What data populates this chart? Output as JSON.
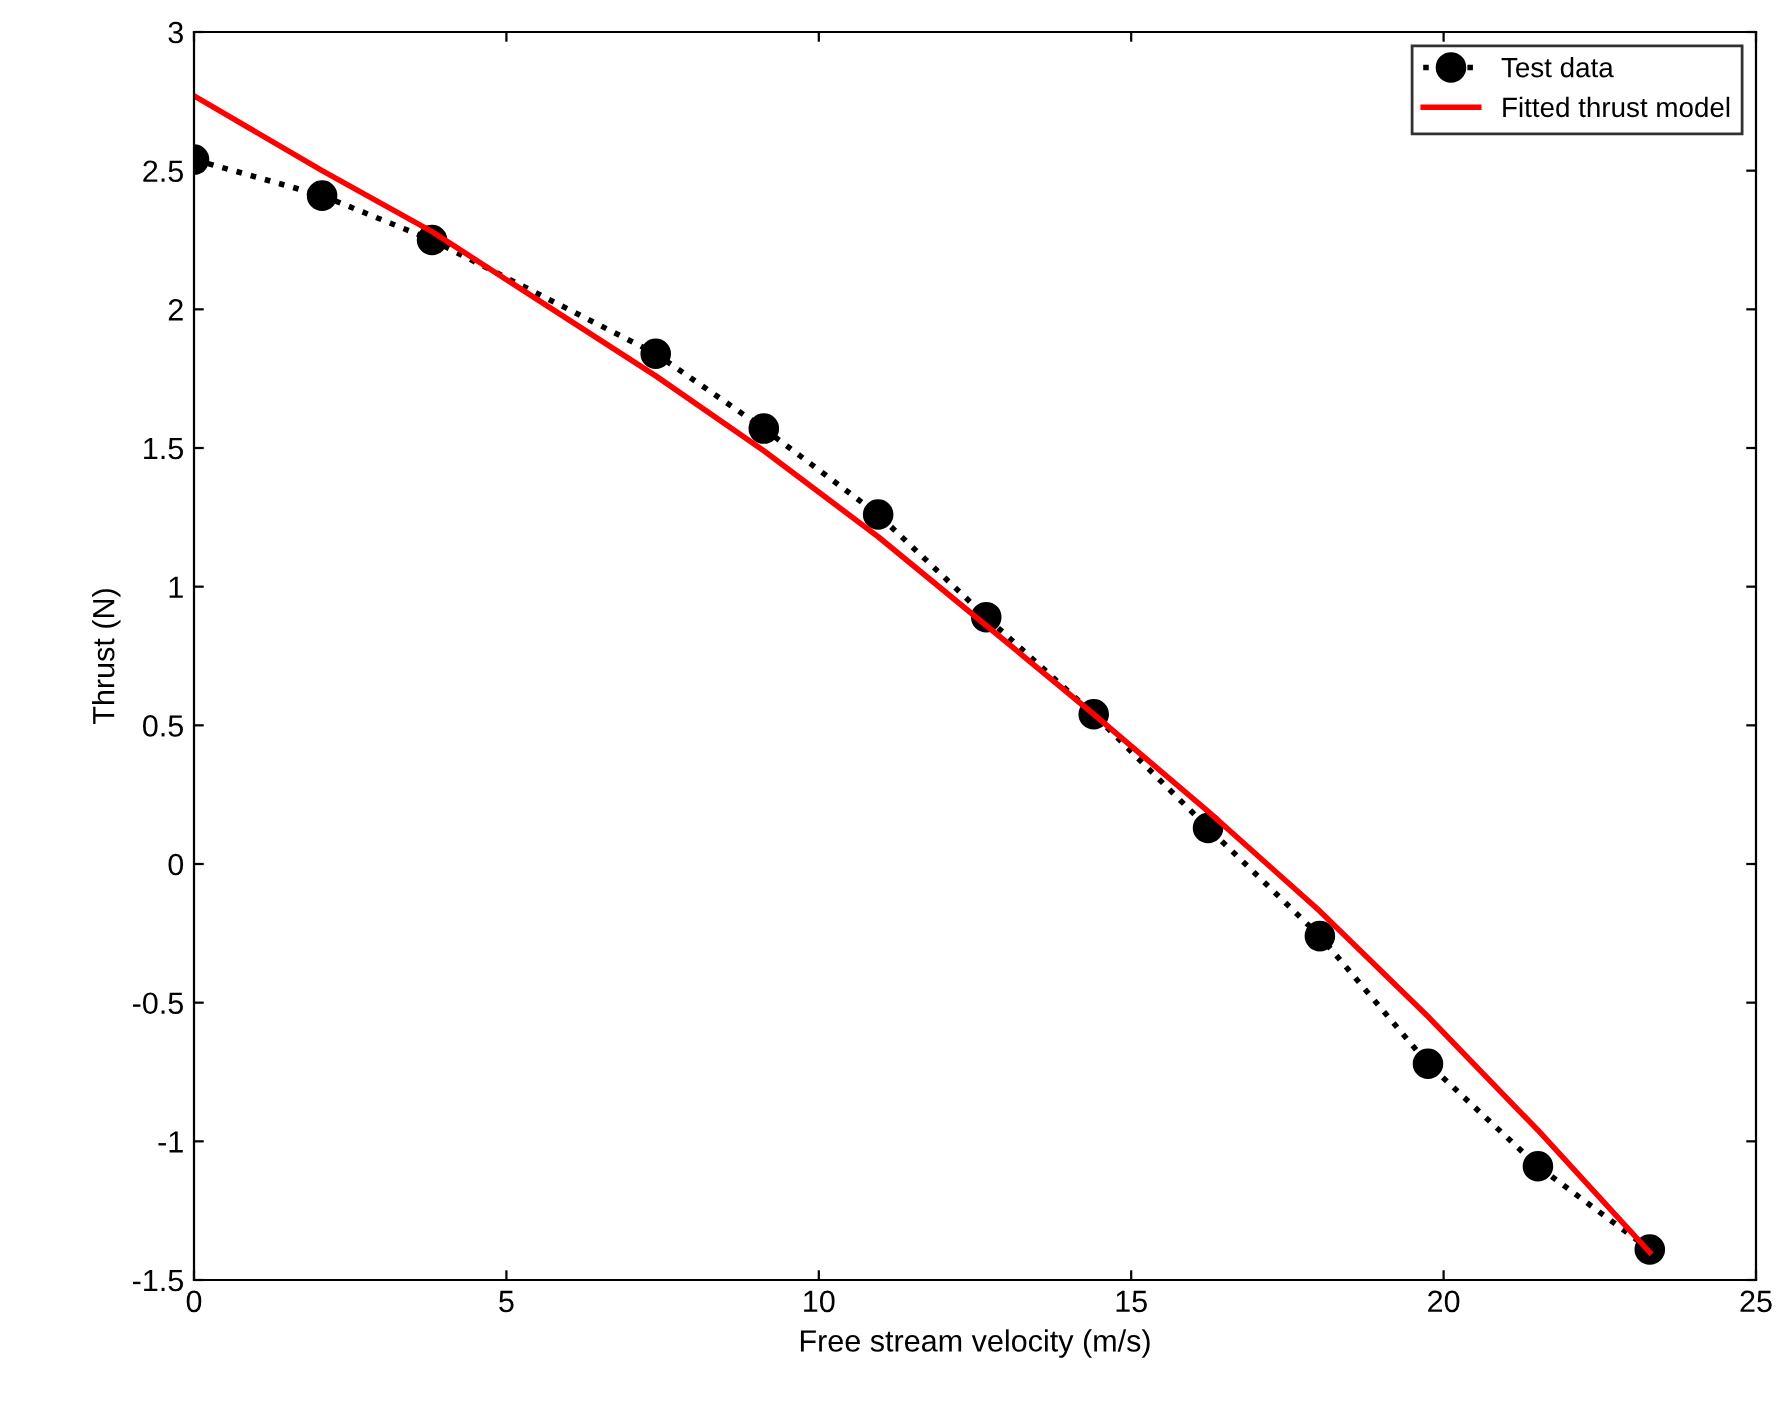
{
  "chart_data": {
    "type": "line",
    "xlabel": "Free stream velocity (m/s)",
    "ylabel": "Thrust (N)",
    "xlim": [
      0,
      25
    ],
    "xticks": [
      0,
      5,
      10,
      15,
      20,
      25
    ],
    "ylim": [
      -1.5,
      3
    ],
    "yticks": [
      -1.5,
      -1,
      -0.5,
      0,
      0.5,
      1,
      1.5,
      2,
      2.5,
      3
    ],
    "grid": false,
    "legend": "top right",
    "series": [
      {
        "name": "Test data",
        "color": "#000000",
        "marker": "circle",
        "line_style": "dotted",
        "x": [
          0,
          2.05,
          3.81,
          7.39,
          9.12,
          10.95,
          12.68,
          14.4,
          16.23,
          18.02,
          19.75,
          21.51,
          23.3
        ],
        "values": [
          2.54,
          2.41,
          2.25,
          1.84,
          1.57,
          1.26,
          0.89,
          0.54,
          0.13,
          -0.26,
          -0.72,
          -1.09,
          -1.39
        ]
      },
      {
        "name": "Fitted thrust model",
        "color": "#ff0000",
        "marker": "none",
        "line_style": "solid",
        "x": [
          0,
          2.05,
          3.81,
          7.39,
          9.12,
          10.95,
          12.68,
          14.4,
          16.23,
          18.02,
          19.75,
          21.51,
          23.3
        ],
        "values": [
          2.77,
          2.5,
          2.28,
          1.76,
          1.49,
          1.18,
          0.86,
          0.54,
          0.19,
          -0.17,
          -0.55,
          -0.96,
          -1.4
        ]
      }
    ]
  }
}
